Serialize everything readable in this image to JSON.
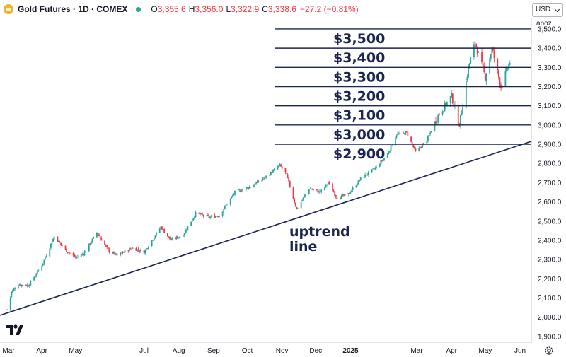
{
  "header": {
    "symbol": "Gold Futures · 1D · COMEX",
    "open_key": "O",
    "open": "3,355.6",
    "high_key": "H",
    "high": "3,356.0",
    "low_key": "L",
    "low": "3,322.9",
    "close_key": "C",
    "close": "3,338.6",
    "change": "−27.2 (−0.81%)"
  },
  "toolbar": {
    "currency": "USD",
    "scale_label": "apoz"
  },
  "colors": {
    "up": "#26a69a",
    "down": "#f23645",
    "annotation": "#1a2550",
    "brand": "#f0b232"
  },
  "icons": {
    "logo": "gold-coin-icon",
    "tradingview": "tradingview-logo-icon",
    "settings": "gear-icon"
  },
  "chart_data": {
    "type": "candlestick",
    "title": "Gold Futures · 1D · COMEX",
    "x_ticks": [
      "Mar",
      "Apr",
      "May",
      "Jul",
      "Aug",
      "Sep",
      "Oct",
      "Nov",
      "Dec",
      "2025",
      "Mar",
      "Apr",
      "May",
      "Jun"
    ],
    "y_ticks": [
      "3,500.0",
      "3,400.0",
      "3,300.0",
      "3,200.0",
      "3,100.0",
      "3,000.0",
      "2,900.0",
      "2,800.0",
      "2,700.0",
      "2,600.0",
      "2,500.0",
      "2,400.0",
      "2,300.0",
      "2,200.0",
      "2,100.0",
      "2,000.0",
      "1,900.0"
    ],
    "ylim": [
      1870,
      3555
    ],
    "horizontal_levels": [
      {
        "value": 3500,
        "label": "$3,500"
      },
      {
        "value": 3400,
        "label": "$3,400"
      },
      {
        "value": 3300,
        "label": "$3,300"
      },
      {
        "value": 3200,
        "label": "$3,200"
      },
      {
        "value": 3100,
        "label": "$3,100"
      },
      {
        "value": 3000,
        "label": "$3,000"
      },
      {
        "value": 2900,
        "label": "$2,900"
      }
    ],
    "trendline": {
      "label_line1": "uptrend",
      "label_line2": "line",
      "start": [
        "2024-03-01",
        2010
      ],
      "end": [
        "2025-06-04",
        2915
      ]
    },
    "close_path": [
      [
        "2024-03-01",
        2040
      ],
      [
        "2024-03-05",
        2130
      ],
      [
        "2024-03-10",
        2170
      ],
      [
        "2024-03-20",
        2165
      ],
      [
        "2024-04-01",
        2270
      ],
      [
        "2024-04-12",
        2420
      ],
      [
        "2024-04-22",
        2350
      ],
      [
        "2024-05-01",
        2310
      ],
      [
        "2024-05-08",
        2330
      ],
      [
        "2024-05-20",
        2440
      ],
      [
        "2024-05-30",
        2350
      ],
      [
        "2024-06-07",
        2320
      ],
      [
        "2024-06-20",
        2360
      ],
      [
        "2024-07-01",
        2340
      ],
      [
        "2024-07-16",
        2470
      ],
      [
        "2024-07-25",
        2400
      ],
      [
        "2024-08-05",
        2430
      ],
      [
        "2024-08-16",
        2540
      ],
      [
        "2024-08-28",
        2520
      ],
      [
        "2024-09-06",
        2530
      ],
      [
        "2024-09-20",
        2650
      ],
      [
        "2024-10-04",
        2680
      ],
      [
        "2024-10-20",
        2740
      ],
      [
        "2024-10-30",
        2790
      ],
      [
        "2024-11-05",
        2740
      ],
      [
        "2024-11-14",
        2560
      ],
      [
        "2024-11-25",
        2670
      ],
      [
        "2024-12-05",
        2650
      ],
      [
        "2024-12-12",
        2700
      ],
      [
        "2024-12-20",
        2620
      ],
      [
        "2024-12-30",
        2640
      ],
      [
        "2025-01-10",
        2720
      ],
      [
        "2025-01-24",
        2780
      ],
      [
        "2025-02-03",
        2850
      ],
      [
        "2025-02-11",
        2950
      ],
      [
        "2025-02-20",
        2960
      ],
      [
        "2025-02-28",
        2860
      ],
      [
        "2025-03-10",
        2920
      ],
      [
        "2025-03-20",
        3050
      ],
      [
        "2025-04-01",
        3150
      ],
      [
        "2025-04-08",
        3000
      ],
      [
        "2025-04-16",
        3300
      ],
      [
        "2025-04-22",
        3430
      ],
      [
        "2025-05-01",
        3250
      ],
      [
        "2025-05-07",
        3400
      ],
      [
        "2025-05-15",
        3200
      ],
      [
        "2025-05-20",
        3280
      ],
      [
        "2025-05-24",
        3345
      ]
    ]
  }
}
